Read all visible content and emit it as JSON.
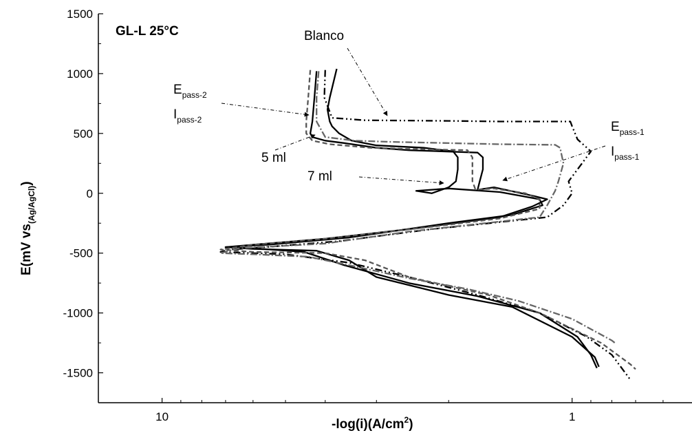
{
  "chart_data": {
    "type": "line",
    "title": "GL-L 25°C",
    "xlabel": {
      "main": "-log(i)(A/cm",
      "sup": "2",
      "end": ")"
    },
    "ylabel": {
      "main": "E(mV vs",
      "sub": "(Ag/AgCl)",
      "end": ")"
    },
    "x_scale": "log",
    "x_reversed": true,
    "xlim": [
      14.3,
      0.51
    ],
    "ylim": [
      -1750,
      1500
    ],
    "x_ticks": [
      10,
      1
    ],
    "x_tick_labels": [
      "10",
      "1"
    ],
    "y_ticks": [
      -1500,
      -1000,
      -500,
      0,
      500,
      1000,
      1500
    ],
    "y_tick_labels": [
      "-1500",
      "-1000",
      "-500",
      "0",
      "500",
      "1000",
      "1500"
    ],
    "grid": false,
    "series": [
      {
        "label_ref": "Blanco",
        "color": "#000000",
        "dash": "10,4,2,4,2,4",
        "points": [
          [
            4.0,
            1030
          ],
          [
            4.02,
            800
          ],
          [
            3.85,
            630
          ],
          [
            3.2,
            610
          ],
          [
            2.0,
            605
          ],
          [
            1.5,
            600
          ],
          [
            1.01,
            600
          ],
          [
            1.0,
            560
          ],
          [
            0.97,
            450
          ],
          [
            0.9,
            350
          ],
          [
            0.97,
            200
          ],
          [
            1.02,
            100
          ],
          [
            1.0,
            0
          ],
          [
            1.05,
            -100
          ],
          [
            1.15,
            -200
          ],
          [
            2.2,
            -300
          ],
          [
            3.7,
            -400
          ],
          [
            5.6,
            -450
          ],
          [
            6.8,
            -470
          ],
          [
            7.2,
            -490
          ],
          [
            5.0,
            -510
          ],
          [
            3.5,
            -580
          ],
          [
            2.5,
            -700
          ],
          [
            1.7,
            -850
          ],
          [
            1.2,
            -1000
          ],
          [
            0.92,
            -1200
          ],
          [
            0.8,
            -1350
          ],
          [
            0.72,
            -1560
          ]
        ]
      },
      {
        "label_ref": "5 ml",
        "color": "#000000",
        "dash": "",
        "points": [
          [
            4.2,
            1020
          ],
          [
            4.25,
            800
          ],
          [
            4.3,
            600
          ],
          [
            4.35,
            500
          ],
          [
            4.3,
            470
          ],
          [
            4.0,
            440
          ],
          [
            3.6,
            420
          ],
          [
            3.0,
            380
          ],
          [
            2.5,
            360
          ],
          [
            1.7,
            340
          ],
          [
            1.65,
            300
          ],
          [
            1.65,
            200
          ],
          [
            1.68,
            100
          ],
          [
            1.7,
            30
          ],
          [
            1.55,
            50
          ],
          [
            1.25,
            -20
          ],
          [
            1.15,
            -50
          ],
          [
            1.25,
            -110
          ],
          [
            1.5,
            -200
          ],
          [
            2.5,
            -300
          ],
          [
            4.0,
            -380
          ],
          [
            6.0,
            -430
          ],
          [
            7.0,
            -450
          ],
          [
            6.0,
            -460
          ],
          [
            4.5,
            -490
          ],
          [
            3.6,
            -600
          ],
          [
            2.5,
            -750
          ],
          [
            1.7,
            -860
          ],
          [
            1.2,
            -1000
          ],
          [
            0.97,
            -1200
          ],
          [
            0.9,
            -1350
          ],
          [
            0.87,
            -1460
          ]
        ]
      },
      {
        "label_ref": "7 ml",
        "color": "#000000",
        "dash": "",
        "points": [
          [
            3.75,
            1040
          ],
          [
            3.9,
            800
          ],
          [
            3.95,
            700
          ],
          [
            3.9,
            600
          ],
          [
            3.85,
            560
          ],
          [
            3.7,
            500
          ],
          [
            3.45,
            440
          ],
          [
            3.0,
            400
          ],
          [
            2.3,
            380
          ],
          [
            1.95,
            350
          ],
          [
            1.9,
            300
          ],
          [
            1.9,
            200
          ],
          [
            1.92,
            100
          ],
          [
            2.0,
            50
          ],
          [
            2.2,
            0
          ],
          [
            2.4,
            20
          ],
          [
            2.0,
            40
          ],
          [
            1.5,
            10
          ],
          [
            1.2,
            -50
          ],
          [
            1.18,
            -100
          ],
          [
            1.4,
            -180
          ],
          [
            2.0,
            -250
          ],
          [
            3.5,
            -370
          ],
          [
            5.5,
            -430
          ],
          [
            7.0,
            -450
          ],
          [
            6.0,
            -465
          ],
          [
            4.2,
            -480
          ],
          [
            3.5,
            -560
          ],
          [
            3.0,
            -700
          ],
          [
            2.0,
            -850
          ],
          [
            1.4,
            -950
          ],
          [
            1.0,
            -1200
          ],
          [
            0.88,
            -1370
          ],
          [
            0.86,
            -1450
          ]
        ]
      },
      {
        "label_ref": "",
        "color": "#555555",
        "dash": "7,4",
        "points": [
          [
            4.35,
            1030
          ],
          [
            4.4,
            800
          ],
          [
            4.45,
            600
          ],
          [
            4.45,
            500
          ],
          [
            4.3,
            440
          ],
          [
            3.9,
            410
          ],
          [
            3.1,
            380
          ],
          [
            2.5,
            370
          ],
          [
            1.8,
            360
          ],
          [
            1.75,
            300
          ],
          [
            1.75,
            200
          ],
          [
            1.75,
            100
          ],
          [
            1.72,
            30
          ],
          [
            1.55,
            40
          ],
          [
            1.3,
            0
          ],
          [
            1.2,
            -50
          ],
          [
            1.2,
            -130
          ],
          [
            1.5,
            -210
          ],
          [
            2.2,
            -280
          ],
          [
            4.0,
            -380
          ],
          [
            6.0,
            -430
          ],
          [
            7.2,
            -470
          ],
          [
            6.0,
            -490
          ],
          [
            4.0,
            -500
          ],
          [
            3.2,
            -560
          ],
          [
            2.5,
            -700
          ],
          [
            1.6,
            -850
          ],
          [
            1.2,
            -1000
          ],
          [
            0.85,
            -1250
          ],
          [
            0.72,
            -1430
          ],
          [
            0.7,
            -1470
          ]
        ]
      },
      {
        "label_ref": "",
        "color": "#666666",
        "dash": "10,3,2,3",
        "points": [
          [
            4.15,
            1020
          ],
          [
            4.2,
            800
          ],
          [
            4.2,
            600
          ],
          [
            4.0,
            470
          ],
          [
            3.4,
            440
          ],
          [
            2.8,
            430
          ],
          [
            1.5,
            410
          ],
          [
            1.1,
            405
          ],
          [
            1.07,
            380
          ],
          [
            1.05,
            250
          ],
          [
            1.08,
            100
          ],
          [
            1.1,
            20
          ],
          [
            1.15,
            -100
          ],
          [
            1.2,
            -200
          ],
          [
            2.5,
            -320
          ],
          [
            4.0,
            -420
          ],
          [
            6.5,
            -460
          ],
          [
            7.2,
            -500
          ],
          [
            6.0,
            -510
          ],
          [
            4.4,
            -530
          ],
          [
            3.4,
            -610
          ],
          [
            2.5,
            -710
          ],
          [
            1.8,
            -800
          ],
          [
            1.35,
            -900
          ],
          [
            1.0,
            -1050
          ],
          [
            0.8,
            -1230
          ],
          [
            0.78,
            -1260
          ]
        ]
      }
    ]
  },
  "annotations": {
    "blanco": "Blanco",
    "ml5": "5 ml",
    "ml7": "7 ml",
    "epass2": {
      "letter": "E",
      "sub": "pass-2"
    },
    "ipass2": {
      "letter": "I",
      "sub": "pass-2"
    },
    "epass1": {
      "letter": "E",
      "sub": "pass-1"
    },
    "ipass1": {
      "letter": "I",
      "sub": "pass-1"
    }
  }
}
